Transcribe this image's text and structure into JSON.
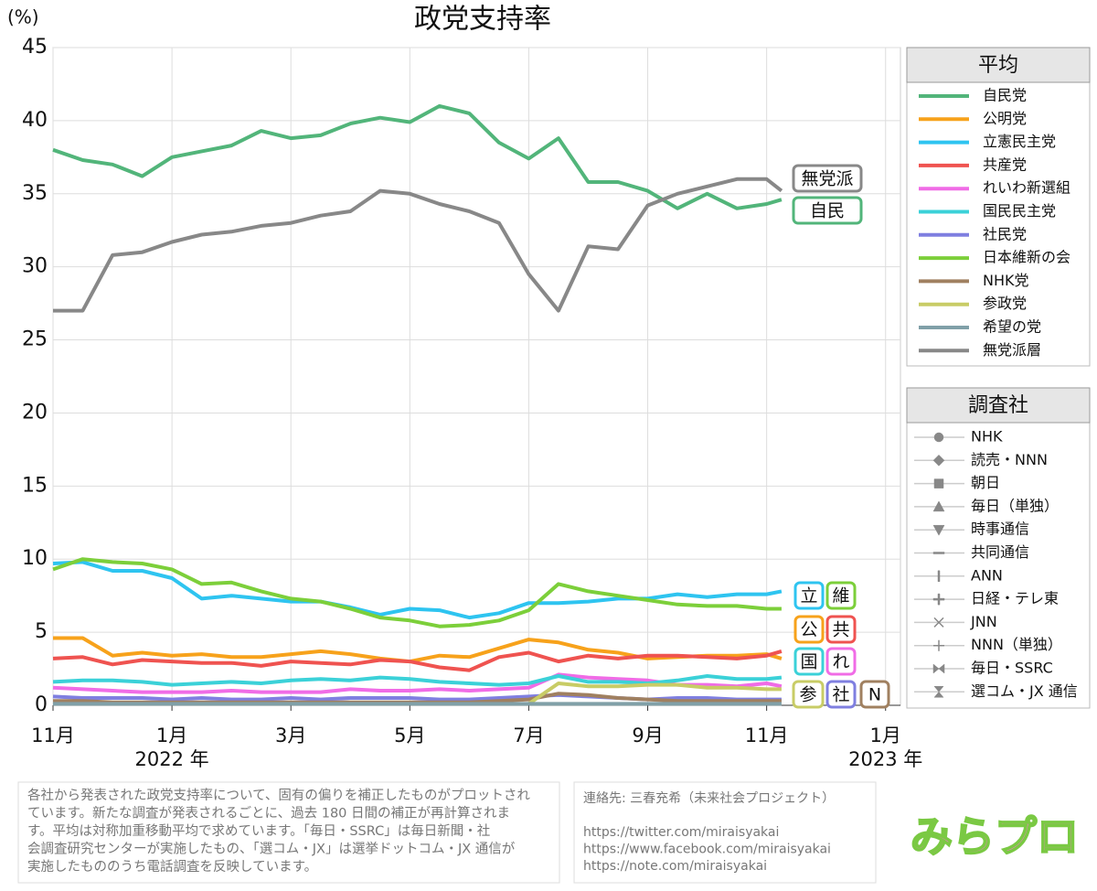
{
  "chart_data": {
    "type": "line",
    "title": "政党支持率",
    "y_label": "(%)",
    "x": [
      0,
      0.5,
      1,
      1.5,
      2,
      2.5,
      3,
      3.5,
      4,
      4.5,
      5,
      5.5,
      6,
      6.5,
      7,
      7.5,
      8,
      8.5,
      9,
      9.5,
      10,
      10.5,
      11,
      11.5,
      12,
      12.25
    ],
    "xlim": [
      0,
      14.25
    ],
    "xticks": [
      {
        "value": 0,
        "label": "11月"
      },
      {
        "value": 2,
        "label": "1月"
      },
      {
        "value": 4,
        "label": "3月"
      },
      {
        "value": 6,
        "label": "5月"
      },
      {
        "value": 8,
        "label": "7月"
      },
      {
        "value": 10,
        "label": "9月"
      },
      {
        "value": 12,
        "label": "11月"
      },
      {
        "value": 14,
        "label": "1月"
      }
    ],
    "year_labels": [
      {
        "value": 2,
        "label": "2022 年"
      },
      {
        "value": 14,
        "label": "2023 年"
      }
    ],
    "ylim": [
      0,
      45
    ],
    "yticks": [
      0,
      5,
      10,
      15,
      20,
      25,
      30,
      35,
      40,
      45
    ],
    "grid": true,
    "legend_title": "平均",
    "series": [
      {
        "name": "自民党",
        "color": "#52b57a",
        "values": [
          38.0,
          37.3,
          37.0,
          36.2,
          37.5,
          37.9,
          38.3,
          39.3,
          38.8,
          39.0,
          39.8,
          40.2,
          39.9,
          41.0,
          40.5,
          38.5,
          37.4,
          38.8,
          35.8,
          35.8,
          35.2,
          34.0,
          35.0,
          34.0,
          34.3,
          34.6
        ]
      },
      {
        "name": "公明党",
        "color": "#f7a21b",
        "values": [
          4.6,
          4.6,
          3.4,
          3.6,
          3.4,
          3.5,
          3.3,
          3.3,
          3.5,
          3.7,
          3.5,
          3.2,
          3.0,
          3.4,
          3.3,
          3.9,
          4.5,
          4.3,
          3.8,
          3.6,
          3.2,
          3.3,
          3.4,
          3.4,
          3.5,
          3.2
        ]
      },
      {
        "name": "立憲民主党",
        "color": "#2ec4f0",
        "values": [
          9.7,
          9.8,
          9.2,
          9.2,
          8.7,
          7.3,
          7.5,
          7.3,
          7.1,
          7.1,
          6.7,
          6.2,
          6.6,
          6.5,
          6.0,
          6.3,
          7.0,
          7.0,
          7.1,
          7.3,
          7.3,
          7.6,
          7.4,
          7.6,
          7.6,
          7.8
        ]
      },
      {
        "name": "共産党",
        "color": "#ef5350",
        "values": [
          3.2,
          3.3,
          2.8,
          3.1,
          3.0,
          2.9,
          2.9,
          2.7,
          3.0,
          2.9,
          2.8,
          3.1,
          3.0,
          2.6,
          2.4,
          3.3,
          3.6,
          3.0,
          3.4,
          3.2,
          3.4,
          3.4,
          3.3,
          3.2,
          3.4,
          3.7
        ]
      },
      {
        "name": "れいわ新選組",
        "color": "#f06ce6",
        "values": [
          1.2,
          1.1,
          1.0,
          0.9,
          0.9,
          0.9,
          1.0,
          0.9,
          0.9,
          0.9,
          1.1,
          1.0,
          1.0,
          1.1,
          1.0,
          1.1,
          1.2,
          2.1,
          1.9,
          1.8,
          1.7,
          1.4,
          1.4,
          1.3,
          1.5,
          1.3
        ]
      },
      {
        "name": "国民民主党",
        "color": "#3bd1d8",
        "values": [
          1.6,
          1.7,
          1.7,
          1.6,
          1.4,
          1.5,
          1.6,
          1.5,
          1.7,
          1.8,
          1.7,
          1.9,
          1.8,
          1.6,
          1.5,
          1.4,
          1.5,
          2.0,
          1.6,
          1.6,
          1.5,
          1.7,
          2.0,
          1.8,
          1.8,
          1.9
        ]
      },
      {
        "name": "社民党",
        "color": "#7f7fe0",
        "values": [
          0.6,
          0.5,
          0.5,
          0.5,
          0.4,
          0.5,
          0.4,
          0.4,
          0.5,
          0.4,
          0.5,
          0.5,
          0.5,
          0.4,
          0.4,
          0.5,
          0.6,
          0.7,
          0.6,
          0.5,
          0.4,
          0.5,
          0.5,
          0.4,
          0.4,
          0.4
        ]
      },
      {
        "name": "日本維新の会",
        "color": "#7ccf3a",
        "values": [
          9.3,
          10.0,
          9.8,
          9.7,
          9.3,
          8.3,
          8.4,
          7.8,
          7.3,
          7.1,
          6.6,
          6.0,
          5.8,
          5.4,
          5.5,
          5.8,
          6.5,
          8.3,
          7.8,
          7.5,
          7.2,
          6.9,
          6.8,
          6.8,
          6.6,
          6.6
        ]
      },
      {
        "name": "NHK党",
        "color": "#a08060",
        "values": [
          0.3,
          0.3,
          0.2,
          0.2,
          0.2,
          0.2,
          0.2,
          0.2,
          0.2,
          0.2,
          0.2,
          0.2,
          0.2,
          0.2,
          0.2,
          0.3,
          0.4,
          0.8,
          0.7,
          0.5,
          0.4,
          0.3,
          0.3,
          0.3,
          0.3,
          0.3
        ]
      },
      {
        "name": "参政党",
        "color": "#c8cc66",
        "values": [
          null,
          null,
          null,
          null,
          null,
          null,
          null,
          null,
          null,
          null,
          null,
          null,
          null,
          null,
          null,
          null,
          0.1,
          1.5,
          1.3,
          1.3,
          1.4,
          1.4,
          1.2,
          1.2,
          1.1,
          1.1
        ]
      },
      {
        "name": "希望の党",
        "color": "#80a0a8",
        "values": [
          0.1,
          0.1,
          0.1,
          0.1,
          0.1,
          0.1,
          0.1,
          0.1,
          0.1,
          0.1,
          0.1,
          0.1,
          0.1,
          0.1,
          0.1,
          0.1,
          0.1,
          0.1,
          0.1,
          0.1,
          0.1,
          0.1,
          0.1,
          0.1,
          0.1,
          0.1
        ]
      },
      {
        "name": "無党派層",
        "color": "#888888",
        "values": [
          27.0,
          27.0,
          30.8,
          31.0,
          31.7,
          32.2,
          32.4,
          32.8,
          33.0,
          33.5,
          33.8,
          35.2,
          35.0,
          34.3,
          33.8,
          33.0,
          29.5,
          27.0,
          31.4,
          31.2,
          34.2,
          35.0,
          35.5,
          36.0,
          36.0,
          35.2
        ]
      }
    ],
    "end_labels": [
      {
        "text": "無党派",
        "color": "#888888"
      },
      {
        "text": "自民",
        "color": "#52b57a"
      },
      {
        "text": "立",
        "color": "#2ec4f0"
      },
      {
        "text": "維",
        "color": "#7ccf3a"
      },
      {
        "text": "公",
        "color": "#f7a21b"
      },
      {
        "text": "共",
        "color": "#ef5350"
      },
      {
        "text": "国",
        "color": "#3bd1d8"
      },
      {
        "text": "れ",
        "color": "#f06ce6"
      },
      {
        "text": "参",
        "color": "#c8cc66"
      },
      {
        "text": "社",
        "color": "#7f7fe0"
      },
      {
        "text": "N",
        "color": "#a08060"
      }
    ],
    "pollster_title": "調査社",
    "pollsters": [
      "NHK",
      "読売・NNN",
      "朝日",
      "毎日（単独）",
      "時事通信",
      "共同通信",
      "ANN",
      "日経・テレ東",
      "JNN",
      "NNN（単独）",
      "毎日・SSRC",
      "選コム・JX 通信"
    ],
    "note": [
      "各社から発表された政党支持率について、固有の偏りを補正したものがプロットされ",
      "ています。新たな調査が発表されるごとに、過去 180 日間の補正が再計算されま",
      "す。平均は対称加重移動平均で求めています。「毎日・SSRC」は毎日新聞・社",
      "会調査研究センターが実施したもの、「選コム・JX」は選挙ドットコム・JX 通信が",
      "実施したもののうち電話調査を反映しています。"
    ],
    "contact": [
      "連絡先: 三春充希（未来社会プロジェクト）",
      "",
      "https://twitter.com/miraisyakai",
      "https://www.facebook.com/miraisyakai",
      "https://note.com/miraisyakai"
    ],
    "logo": "みらプロ"
  }
}
